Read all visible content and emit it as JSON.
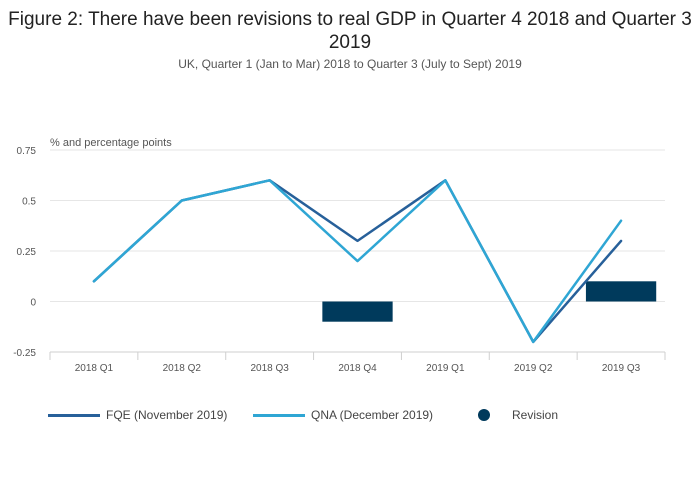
{
  "chart_data": {
    "type": "line",
    "title": "Figure 2: There have been revisions to real GDP in Quarter 4 2018 and Quarter 3 2019",
    "subtitle": "UK, Quarter 1 (Jan to Mar) 2018 to Quarter 3 (July to Sept) 2019",
    "ylabel": "% and percentage points",
    "categories": [
      "2018 Q1",
      "2018 Q2",
      "2018 Q3",
      "2018 Q4",
      "2019 Q1",
      "2019 Q2",
      "2019 Q3"
    ],
    "ylim": [
      -0.25,
      0.75
    ],
    "yticks": [
      -0.25,
      0,
      0.25,
      0.5,
      0.75
    ],
    "ytick_labels": [
      "-0.25",
      "0",
      "0.25",
      "0.5",
      "0.75"
    ],
    "grid": true,
    "legend_position": "bottom",
    "series": [
      {
        "name": "FQE (November 2019)",
        "type": "line",
        "color": "#27609a",
        "values": [
          0.1,
          0.5,
          0.6,
          0.3,
          0.6,
          -0.2,
          0.3
        ]
      },
      {
        "name": "QNA (December 2019)",
        "type": "line",
        "color": "#2fa6d4",
        "values": [
          0.1,
          0.5,
          0.6,
          0.2,
          0.6,
          -0.2,
          0.4
        ]
      },
      {
        "name": "Revision",
        "type": "bar",
        "color": "#003a5c",
        "values": [
          0,
          0,
          0,
          -0.1,
          0,
          0,
          0.1
        ]
      }
    ]
  }
}
